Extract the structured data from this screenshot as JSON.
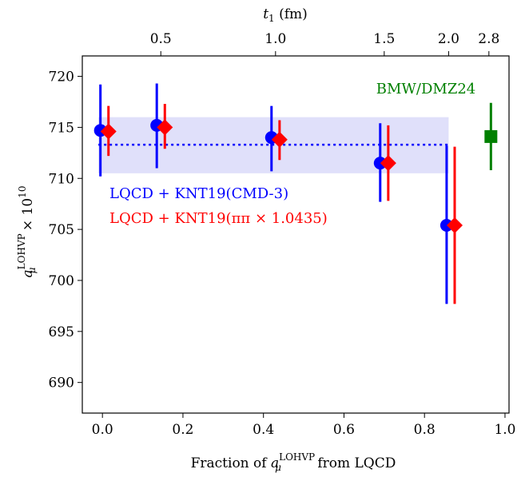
{
  "chart_data": {
    "type": "scatter",
    "xlabel_pre": "Fraction of ",
    "xlabel_sym": "a",
    "xlabel_sub": "μ",
    "xlabel_sup": "LOHVP",
    "xlabel_post": " from LQCD",
    "ylabel_sym": "a",
    "ylabel_sub": "μ",
    "ylabel_sup": "LOHVP",
    "ylabel_times": " × 10",
    "ylabel_exp": "10",
    "top_axis_label_sym": "t",
    "top_axis_label_sub": "1",
    "top_axis_label_post": " (fm)",
    "xlim": [
      -0.05,
      1.01
    ],
    "ylim": [
      687,
      722
    ],
    "xticks": [
      0.0,
      0.2,
      0.4,
      0.6,
      0.8,
      1.0
    ],
    "xtick_labels": [
      "0.0",
      "0.2",
      "0.4",
      "0.6",
      "0.8",
      "1.0"
    ],
    "yticks": [
      690,
      695,
      700,
      705,
      710,
      715,
      720
    ],
    "ytick_labels": [
      "690",
      "695",
      "700",
      "705",
      "710",
      "715",
      "720"
    ],
    "top_ticks": [
      {
        "x": 0.145,
        "label": "0.5"
      },
      {
        "x": 0.43,
        "label": "1.0"
      },
      {
        "x": 0.7,
        "label": "1.5"
      },
      {
        "x": 0.86,
        "label": "2.0"
      },
      {
        "x": 0.96,
        "label": "2.8"
      }
    ],
    "band": {
      "x0": -0.01,
      "x1": 0.86,
      "y0": 710.5,
      "y1": 716.0,
      "center": 713.3,
      "color": "#e0e0fa",
      "line_color": "#0000ff"
    },
    "series": [
      {
        "name": "LQCD + KNT19(CMD-3)",
        "color": "#0000ff",
        "marker": "circle",
        "points": [
          {
            "x": -0.005,
            "y": 714.7,
            "lo": 710.2,
            "hi": 719.2
          },
          {
            "x": 0.135,
            "y": 715.2,
            "lo": 711.0,
            "hi": 719.3
          },
          {
            "x": 0.42,
            "y": 714.0,
            "lo": 710.7,
            "hi": 717.1
          },
          {
            "x": 0.69,
            "y": 711.5,
            "lo": 707.7,
            "hi": 715.4
          },
          {
            "x": 0.855,
            "y": 705.4,
            "lo": 697.7,
            "hi": 713.2
          }
        ]
      },
      {
        "name": "LQCD + KNT19(ππ × 1.0435)",
        "color": "#ff0000",
        "marker": "diamond",
        "points": [
          {
            "x": 0.015,
            "y": 714.6,
            "lo": 712.2,
            "hi": 717.1
          },
          {
            "x": 0.155,
            "y": 715.0,
            "lo": 712.9,
            "hi": 717.3
          },
          {
            "x": 0.44,
            "y": 713.8,
            "lo": 711.8,
            "hi": 715.7
          },
          {
            "x": 0.71,
            "y": 711.5,
            "lo": 707.8,
            "hi": 715.2
          },
          {
            "x": 0.875,
            "y": 705.4,
            "lo": 697.7,
            "hi": 713.1
          }
        ]
      }
    ],
    "reference": {
      "name": "BMW/DMZ24",
      "x": 0.965,
      "y": 714.1,
      "lo": 710.8,
      "hi": 717.4,
      "color": "#008000",
      "marker": "square"
    },
    "legend_placement": "center-left",
    "grid": false
  }
}
